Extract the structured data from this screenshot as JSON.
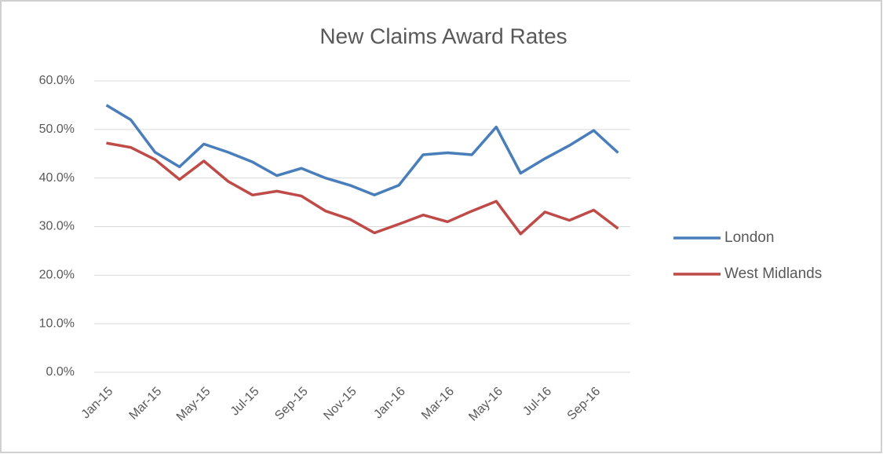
{
  "chart_data": {
    "type": "line",
    "title": "New Claims Award Rates",
    "categories": [
      "Jan-15",
      null,
      "Mar-15",
      null,
      "May-15",
      null,
      "Jul-15",
      null,
      "Sep-15",
      null,
      "Nov-15",
      null,
      "Jan-16",
      null,
      "Mar-16",
      null,
      "May-16",
      null,
      "Jul-16",
      null,
      "Sep-16",
      null
    ],
    "series": [
      {
        "name": "London",
        "color": "#4a7ebb",
        "values": [
          55,
          52,
          45.3,
          42.3,
          47,
          45.3,
          43.3,
          40.5,
          42,
          40,
          38.5,
          36.5,
          38.5,
          44.8,
          45.2,
          44.8,
          50.5,
          41,
          44,
          46.7,
          49.8,
          45.2
        ]
      },
      {
        "name": "West Midlands",
        "color": "#be4b48",
        "values": [
          47.2,
          46.3,
          43.8,
          39.7,
          43.5,
          39.3,
          36.5,
          37.3,
          36.3,
          33.2,
          31.5,
          28.7,
          30.5,
          32.4,
          31,
          33.2,
          35.2,
          28.5,
          33,
          31.3,
          33.4,
          29.6
        ]
      }
    ],
    "ylim": [
      0,
      60
    ],
    "yticks": [
      {
        "value": 0,
        "label": "0.0%"
      },
      {
        "value": 10,
        "label": "10.0%"
      },
      {
        "value": 20,
        "label": "20.0%"
      },
      {
        "value": 30,
        "label": "30.0%"
      },
      {
        "value": 40,
        "label": "40.0%"
      },
      {
        "value": 50,
        "label": "50.0%"
      },
      {
        "value": 60,
        "label": "60.0%"
      }
    ],
    "grid": true,
    "legend": "right"
  }
}
